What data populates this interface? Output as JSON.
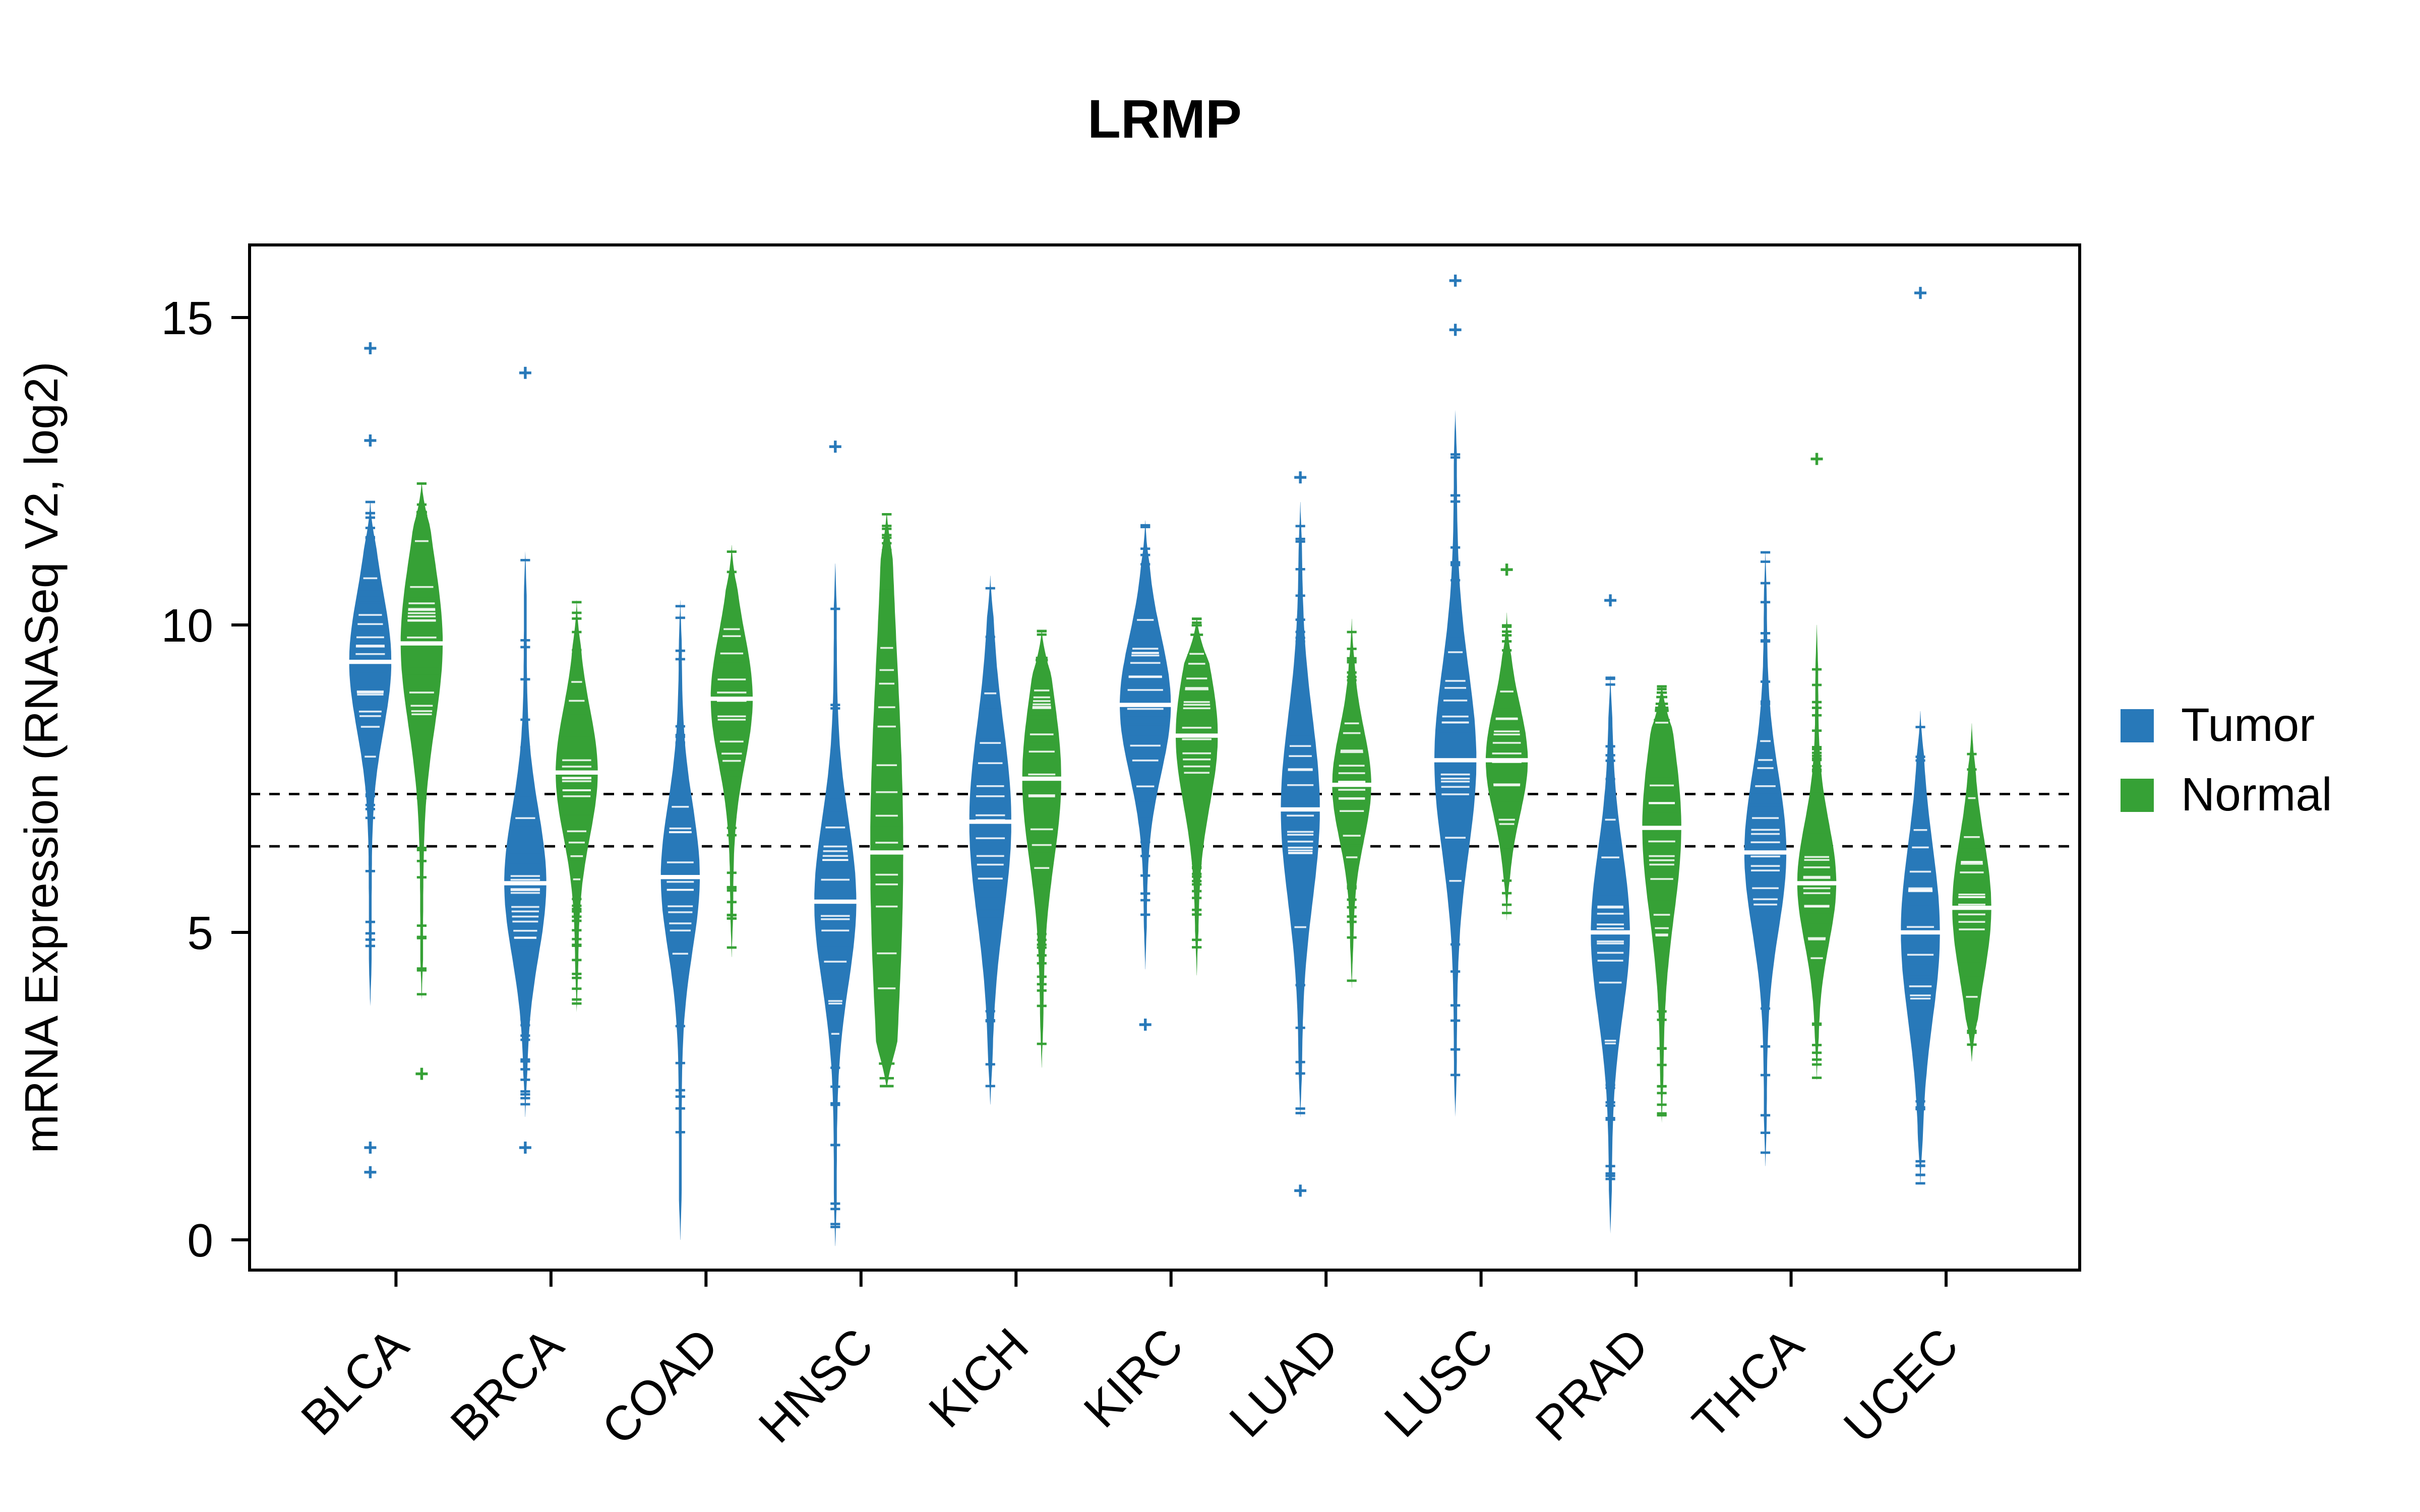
{
  "figure": {
    "background": "#ffffff"
  },
  "chart_data": {
    "type": "violin",
    "title": "LRMP",
    "ylabel": "mRNA Expression (RNASeq V2, log2)",
    "xlabel": "",
    "ylim": [
      -0.5,
      16.2
    ],
    "yticks": [
      0,
      5,
      10,
      15
    ],
    "grid": false,
    "legend_position": "right",
    "reference_lines": [
      7.25,
      6.4
    ],
    "categories": [
      "BLCA",
      "BRCA",
      "COAD",
      "HNSC",
      "KICH",
      "KIRC",
      "LUAD",
      "LUSC",
      "PRAD",
      "THCA",
      "UCEC"
    ],
    "series": [
      {
        "name": "Tumor",
        "color": "#2879B9",
        "stats": [
          {
            "min": 3.8,
            "q1": 8.6,
            "med": 9.4,
            "q3": 10.1,
            "max": 12.0,
            "out": [
              1.1,
              1.5,
              13.0,
              14.5
            ],
            "w": 13
          },
          {
            "min": 2.0,
            "q1": 5.0,
            "med": 5.8,
            "q3": 6.6,
            "max": 11.2,
            "out": [
              1.5,
              14.1
            ],
            "w": 13
          },
          {
            "min": 0.0,
            "q1": 5.0,
            "med": 5.9,
            "q3": 6.6,
            "max": 10.4,
            "out": [],
            "w": 12
          },
          {
            "min": -0.1,
            "q1": 4.6,
            "med": 5.5,
            "q3": 6.4,
            "max": 11.0,
            "out": [
              12.9
            ],
            "w": 13
          },
          {
            "min": 2.2,
            "q1": 5.8,
            "med": 6.8,
            "q3": 7.9,
            "max": 10.8,
            "out": [],
            "w": 13
          },
          {
            "min": 4.4,
            "q1": 8.0,
            "med": 8.7,
            "q3": 9.5,
            "max": 11.7,
            "out": [
              3.5
            ],
            "w": 16
          },
          {
            "min": 2.0,
            "q1": 6.0,
            "med": 7.0,
            "q3": 8.0,
            "max": 12.0,
            "out": [
              0.8,
              12.4
            ],
            "w": 12
          },
          {
            "min": 2.0,
            "q1": 6.8,
            "med": 7.8,
            "q3": 8.8,
            "max": 13.5,
            "out": [
              14.8,
              15.6
            ],
            "w": 13
          },
          {
            "min": 0.1,
            "q1": 4.2,
            "med": 5.0,
            "q3": 6.0,
            "max": 9.2,
            "out": [
              10.4
            ],
            "w": 12
          },
          {
            "min": 1.2,
            "q1": 5.3,
            "med": 6.3,
            "q3": 7.0,
            "max": 11.2,
            "out": [],
            "w": 13
          },
          {
            "min": 0.9,
            "q1": 4.0,
            "med": 5.0,
            "q3": 5.9,
            "max": 8.6,
            "out": [
              15.4
            ],
            "w": 12
          }
        ]
      },
      {
        "name": "Normal",
        "color": "#36A136",
        "stats": [
          {
            "min": 3.9,
            "q1": 8.8,
            "med": 9.7,
            "q3": 10.6,
            "max": 12.3,
            "out": [
              2.7
            ],
            "w": 13
          },
          {
            "min": 3.7,
            "q1": 7.0,
            "med": 7.6,
            "q3": 8.4,
            "max": 10.4,
            "out": [],
            "w": 13
          },
          {
            "min": 4.6,
            "q1": 8.0,
            "med": 8.8,
            "q3": 9.4,
            "max": 11.3,
            "out": [],
            "w": 13
          },
          {
            "min": 2.5,
            "q1": 4.8,
            "med": 6.3,
            "q3": 9.0,
            "max": 11.8,
            "out": [],
            "w": 10
          },
          {
            "min": 2.8,
            "q1": 6.5,
            "med": 7.5,
            "q3": 8.3,
            "max": 9.9,
            "out": [],
            "w": 12
          },
          {
            "min": 4.3,
            "q1": 7.4,
            "med": 8.2,
            "q3": 8.9,
            "max": 10.1,
            "out": [],
            "w": 13
          },
          {
            "min": 4.1,
            "q1": 6.9,
            "med": 7.4,
            "q3": 8.1,
            "max": 10.1,
            "out": [],
            "w": 12
          },
          {
            "min": 5.2,
            "q1": 7.2,
            "med": 7.8,
            "q3": 8.4,
            "max": 10.2,
            "out": [
              10.9
            ],
            "w": 13
          },
          {
            "min": 1.9,
            "q1": 5.8,
            "med": 6.7,
            "q3": 7.7,
            "max": 9.0,
            "out": [],
            "w": 12
          },
          {
            "min": 2.6,
            "q1": 5.1,
            "med": 5.8,
            "q3": 6.4,
            "max": 10.0,
            "out": [
              12.7
            ],
            "w": 12
          },
          {
            "min": 2.9,
            "q1": 4.7,
            "med": 5.4,
            "q3": 6.2,
            "max": 8.4,
            "out": [],
            "w": 12
          }
        ]
      }
    ]
  }
}
